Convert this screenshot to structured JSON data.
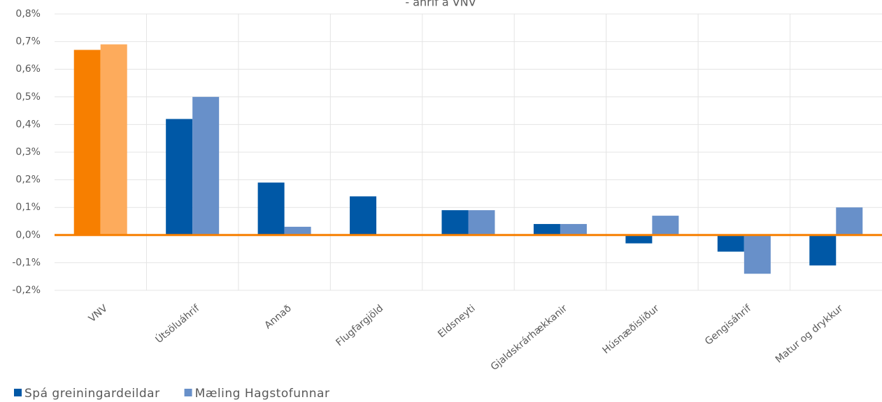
{
  "chart_data": {
    "type": "bar",
    "subtitle": "- áhrif á VNV",
    "categories": [
      "VNV",
      "Útsöluáhrif",
      "Annað",
      "Flugfargjöld",
      "Eldsneyti",
      "Gjaldskrárhækkanir",
      "Húsnæðisliður",
      "Gengisáhrif",
      "Matur og drykkur"
    ],
    "series": [
      {
        "name": "Spá greiningardeildar",
        "color": "#0058a6",
        "highlight": {
          "index": 0,
          "color": "#f77f00"
        },
        "values": [
          0.67,
          0.42,
          0.19,
          0.14,
          0.09,
          0.04,
          -0.03,
          -0.06,
          -0.11
        ]
      },
      {
        "name": "Mæling Hagstofunnar",
        "color": "#6890c9",
        "highlight": {
          "index": 0,
          "color": "#fdab5c"
        },
        "values": [
          0.69,
          0.5,
          0.03,
          0,
          0.09,
          0.04,
          0.07,
          -0.14,
          0.1
        ]
      }
    ],
    "ylim": [
      -0.2,
      0.8
    ],
    "yticks": [
      {
        "value": -0.2,
        "label": "-0,2%"
      },
      {
        "value": -0.1,
        "label": "-0,1%"
      },
      {
        "value": 0,
        "label": "0,0%"
      },
      {
        "value": 0.1,
        "label": "0,1%"
      },
      {
        "value": 0.2,
        "label": "0,2%"
      },
      {
        "value": 0.3,
        "label": "0,3%"
      },
      {
        "value": 0.4,
        "label": "0,4%"
      },
      {
        "value": 0.5,
        "label": "0,5%"
      },
      {
        "value": 0.6,
        "label": "0,6%"
      },
      {
        "value": 0.7,
        "label": "0,7%"
      },
      {
        "value": 0.8,
        "label": "0,8%"
      }
    ],
    "grid": true,
    "zero_line_color": "#f77f00",
    "legend": "bottom-left"
  }
}
